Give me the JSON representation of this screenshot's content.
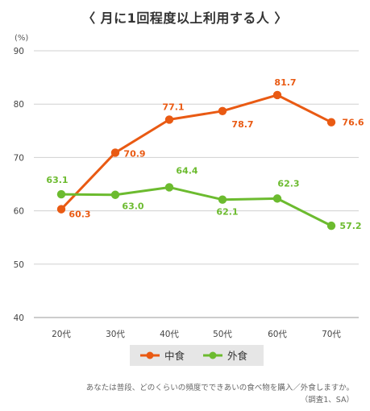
{
  "title": "〈 月に1回程度以上利用する人 〉",
  "unit_label": "(%)",
  "footnote": {
    "line1": "あなたは普段、どのくらいの頻度でできあいの食べ物を購入／外食しますか。",
    "line2": "（調査1、SA）"
  },
  "chart_data": {
    "type": "line",
    "categories": [
      "20代",
      "30代",
      "40代",
      "50代",
      "60代",
      "70代"
    ],
    "ylim": [
      40,
      90
    ],
    "yticks": [
      40,
      50,
      60,
      70,
      80,
      90
    ],
    "grid": true,
    "legend_position": "bottom-center",
    "series": [
      {
        "name": "中食",
        "color": "#e95a13",
        "values": [
          60.3,
          70.9,
          77.1,
          78.7,
          81.7,
          76.6
        ],
        "labels": [
          "60.3",
          "70.9",
          "77.1",
          "78.7",
          "81.7",
          "76.6"
        ]
      },
      {
        "name": "外食",
        "color": "#6cbb2f",
        "values": [
          63.1,
          63.0,
          64.4,
          62.1,
          62.3,
          57.2
        ],
        "labels": [
          "63.1",
          "63.0",
          "64.4",
          "62.1",
          "62.3",
          "57.2"
        ]
      }
    ]
  }
}
